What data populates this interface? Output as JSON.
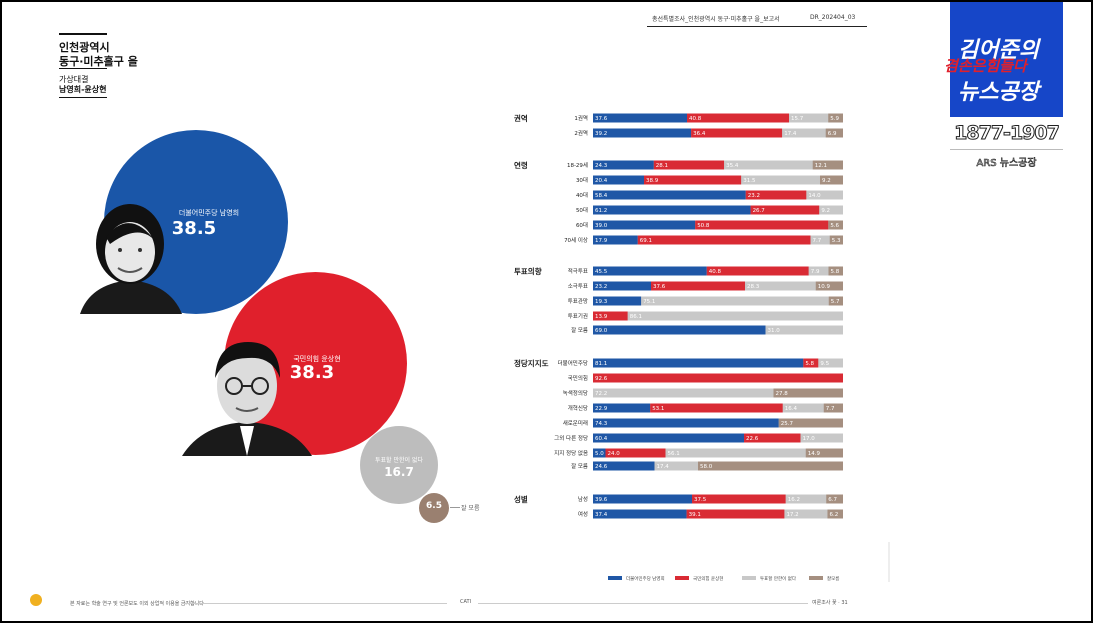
{
  "header": {
    "survey_title": "총선특별조사_인천광역시 동구·미추홀구 을_보고서",
    "doc_code": "DR_202404_03"
  },
  "region": {
    "line1": "인천광역시",
    "line2": "동구·미추홀구 을",
    "matchup_label": "가상대결",
    "matchup_names": "남영희-윤상현"
  },
  "candidates": [
    {
      "party_name": "더불어민주당 남영희",
      "value": "38.5",
      "color": "#1a56a8"
    },
    {
      "party_name": "국민의힘 윤상현",
      "value": "38.3",
      "color": "#e0202c"
    },
    {
      "party_name": "투표할 만한이 없다",
      "value": "16.7",
      "color": "#bdbdbd"
    },
    {
      "party_name": "잘 모름",
      "value": "6.5",
      "color": "#9a8070"
    }
  ],
  "colors": {
    "blue": "#1f57a6",
    "red": "#d92b34",
    "gray": "#c8c8c8",
    "brown": "#a58f80"
  },
  "chart_data": {
    "type": "bar",
    "orientation": "horizontal-stacked-100",
    "series": [
      {
        "name": "더불어민주당 남영희"
      },
      {
        "name": "국민의힘 윤상현"
      },
      {
        "name": "투표할 만한이 없다"
      },
      {
        "name": "잘모름"
      }
    ],
    "groups": [
      {
        "name": "권역",
        "rows": [
          {
            "label": "1권역",
            "values": [
              37.6,
              40.8,
              15.7,
              5.9
            ]
          },
          {
            "label": "2권역",
            "values": [
              39.2,
              36.4,
              17.4,
              6.9
            ]
          }
        ]
      },
      {
        "name": "연령",
        "rows": [
          {
            "label": "18-29세",
            "values": [
              24.3,
              28.1,
              35.4,
              12.1
            ]
          },
          {
            "label": "30대",
            "values": [
              20.4,
              38.9,
              31.5,
              9.2
            ]
          },
          {
            "label": "40대",
            "values": [
              58.4,
              23.2,
              14.0,
              null
            ]
          },
          {
            "label": "50대",
            "values": [
              61.2,
              26.7,
              9.2,
              null
            ]
          },
          {
            "label": "60대",
            "values": [
              39.0,
              50.8,
              null,
              5.6
            ]
          },
          {
            "label": "70세 이상",
            "values": [
              17.9,
              69.1,
              7.7,
              5.3
            ]
          }
        ]
      },
      {
        "name": "투표의향",
        "rows": [
          {
            "label": "적극투표",
            "values": [
              45.5,
              40.8,
              7.9,
              5.8
            ]
          },
          {
            "label": "소극투표",
            "values": [
              23.2,
              37.6,
              28.3,
              10.9
            ]
          },
          {
            "label": "투표관망",
            "values": [
              19.3,
              null,
              75.1,
              5.7
            ]
          },
          {
            "label": "투표기권",
            "values": [
              null,
              13.9,
              86.1,
              null
            ]
          },
          {
            "label": "잘 모름",
            "values": [
              69.0,
              null,
              31.0,
              null
            ]
          }
        ]
      },
      {
        "name": "정당지지도",
        "rows": [
          {
            "label": "더불어민주당",
            "values": [
              81.1,
              5.8,
              9.5,
              null
            ]
          },
          {
            "label": "국민의힘",
            "values": [
              null,
              92.6,
              null,
              null
            ]
          },
          {
            "label": "녹색정의당",
            "values": [
              null,
              null,
              72.2,
              27.8
            ]
          },
          {
            "label": "개혁신당",
            "values": [
              22.9,
              53.1,
              16.4,
              7.7
            ]
          },
          {
            "label": "새로운미래",
            "values": [
              74.3,
              null,
              null,
              25.7
            ]
          },
          {
            "label": "그외 다른 정당",
            "values": [
              60.4,
              22.6,
              17.0,
              null
            ]
          },
          {
            "label": "지지 정당 없음",
            "values": [
              5.0,
              24.0,
              56.1,
              14.9
            ]
          },
          {
            "label": "잘 모름",
            "values": [
              24.6,
              null,
              17.4,
              58.0
            ]
          }
        ]
      },
      {
        "name": "성별",
        "rows": [
          {
            "label": "남성",
            "values": [
              39.6,
              37.5,
              16.2,
              6.7
            ]
          },
          {
            "label": "여성",
            "values": [
              37.4,
              39.1,
              17.2,
              6.2
            ]
          }
        ]
      }
    ]
  },
  "footer": {
    "method": "CATI",
    "page_label": "여론조사 꽃 · 31",
    "note": "본 자료는 학술 연구 및 언론보도 이외 상업적 이용을 금지합니다"
  },
  "overlay": {
    "show_title_1": "김어준의",
    "show_title_2": "겸손은힘들다",
    "show_title_3": "뉴스공장",
    "phone_number": "1877-1907",
    "ars_label": "ARS 뉴스공장"
  }
}
